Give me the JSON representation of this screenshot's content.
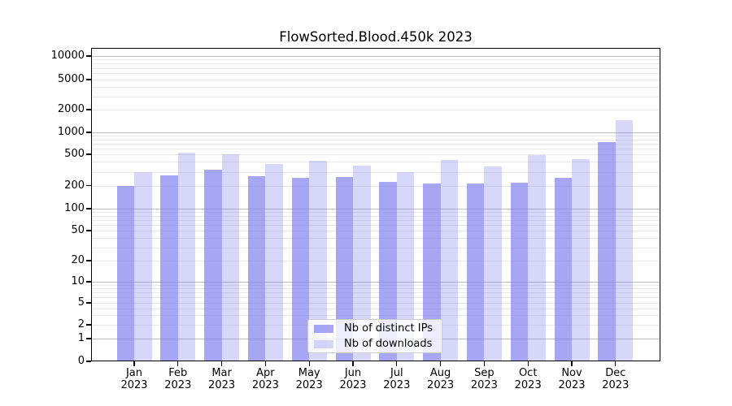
{
  "chart_data": {
    "type": "bar",
    "title": "FlowSorted.Blood.450k 2023",
    "categories": [
      "Jan",
      "Feb",
      "Mar",
      "Apr",
      "May",
      "Jun",
      "Jul",
      "Aug",
      "Sep",
      "Oct",
      "Nov",
      "Dec"
    ],
    "category_year": "2023",
    "series": [
      {
        "name": "Nb of distinct IPs",
        "color": "rgba(124,124,238,0.68)",
        "values": [
          200,
          270,
          315,
          265,
          250,
          260,
          225,
          215,
          215,
          220,
          250,
          740
        ]
      },
      {
        "name": "Nb of downloads",
        "color": "rgba(124,124,238,0.30)",
        "values": [
          300,
          525,
          500,
          375,
          410,
          360,
          300,
          425,
          350,
          485,
          430,
          1450
        ]
      }
    ],
    "yscale": "symlog",
    "yticks": [
      0,
      1,
      2,
      5,
      10,
      20,
      50,
      100,
      200,
      500,
      1000,
      2000,
      5000,
      10000
    ],
    "ylim": [
      0,
      10000
    ],
    "grid": true,
    "legend_position": "lower center",
    "colors": {
      "major_gridline": "#bdbdbd",
      "minor_gridline": "#e9e9e9",
      "axis": "#000000",
      "background": "#ffffff"
    }
  }
}
